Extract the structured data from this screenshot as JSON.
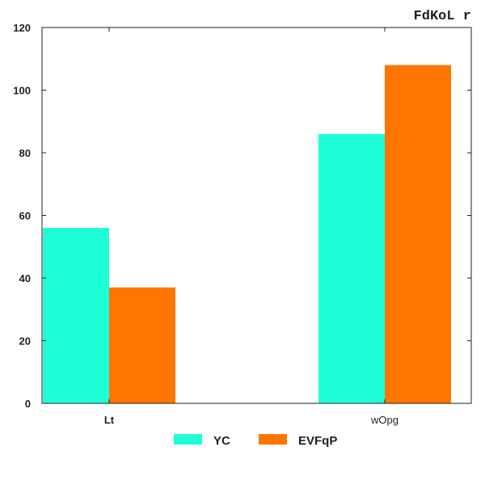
{
  "chart_data": {
    "type": "bar",
    "title": "FdKoL r",
    "xlabel": "",
    "ylabel": "",
    "categories": [
      "Lt",
      "wOpg"
    ],
    "series": [
      {
        "name": "YC",
        "values": [
          56,
          86
        ],
        "color": "#1effd8"
      },
      {
        "name": "EVFqP",
        "values": [
          37,
          108
        ],
        "color": "#ff7500"
      }
    ],
    "ylim": [
      0,
      120
    ],
    "yticks": [
      0,
      20,
      40,
      60,
      80,
      100,
      120
    ],
    "grid": false,
    "legend_position": "bottom-center"
  }
}
